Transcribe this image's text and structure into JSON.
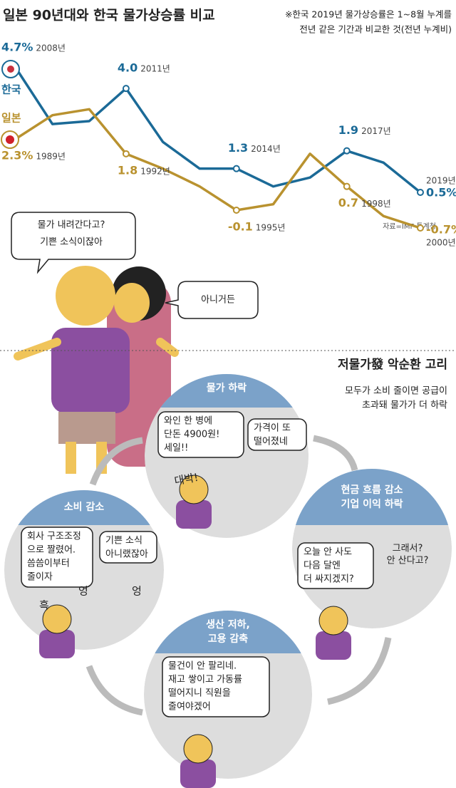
{
  "chart_data": {
    "type": "line",
    "title": "일본 90년대와 한국 물가상승률 비교",
    "note": [
      "※한국 2019년 물가상승률은 1~8월 누계를",
      "전년 같은 기간과 비교한 것(전년 누계비)"
    ],
    "source": "자료=IMF·통계청",
    "series": [
      {
        "name": "한국",
        "color": "#1b6a97",
        "categories": [
          "2008년",
          null,
          null,
          "2011년",
          null,
          null,
          "2014년",
          null,
          null,
          "2017년",
          null,
          "2019년"
        ],
        "values": [
          4.7,
          2.8,
          2.9,
          4.0,
          2.2,
          1.3,
          1.3,
          0.7,
          1.0,
          1.9,
          1.5,
          0.5
        ],
        "value_labels": [
          "4.7%",
          null,
          null,
          "4.0",
          null,
          null,
          "1.3",
          null,
          null,
          "1.9",
          null,
          "0.5%"
        ]
      },
      {
        "name": "일본",
        "color": "#b9922f",
        "categories": [
          "1989년",
          null,
          null,
          "1992년",
          null,
          null,
          "1995년",
          null,
          null,
          "1998년",
          null,
          "2000년"
        ],
        "values": [
          2.3,
          3.1,
          3.3,
          1.8,
          1.3,
          0.7,
          -0.1,
          0.1,
          1.8,
          0.7,
          -0.3,
          -0.7
        ],
        "value_labels": [
          "2.3%",
          null,
          null,
          "1.8",
          null,
          null,
          "-0.1",
          null,
          null,
          "0.7",
          null,
          "-0.7%"
        ]
      }
    ]
  },
  "cartoon": {
    "top_bubble": [
      "물가 내려간다고?",
      "기쁜 소식이잖아"
    ],
    "reply_bubble": "아니거든",
    "cycle_title": "저물가發 악순환 고리",
    "cycle_subtitle": [
      "모두가 소비 줄이면 공급이",
      "초과돼 물가가 더 하락"
    ],
    "stages": [
      {
        "title": [
          "물가 하락"
        ],
        "bubbles": [
          [
            "와인 한 병에",
            "단돈 4900원!",
            "세일!!"
          ],
          [
            "가격이 또",
            "떨어졌네"
          ]
        ],
        "sound": "대박!"
      },
      {
        "title": [
          "현금 흐름 감소",
          "기업 이익 하락"
        ],
        "bubbles": [
          [
            "오늘 안 사도",
            "다음 달엔",
            "더 싸지겠지?"
          ]
        ],
        "sound": [
          "그래서?",
          "안 산다고?"
        ]
      },
      {
        "title": [
          "생산 저하,",
          "고용 감축"
        ],
        "bubbles": [
          [
            "물건이 안 팔리네.",
            "재고 쌓이고 가동률",
            "떨어지니 직원을",
            "줄여야겠어"
          ]
        ]
      },
      {
        "title": [
          "소비 감소"
        ],
        "bubbles": [
          [
            "회사 구조조정",
            "으로 짤렸어.",
            "씀씀이부터",
            "줄이자"
          ],
          [
            "기쁜 소식",
            "아니랬잖아"
          ]
        ],
        "sounds": [
          "흑",
          "엉",
          "엉"
        ]
      }
    ]
  }
}
